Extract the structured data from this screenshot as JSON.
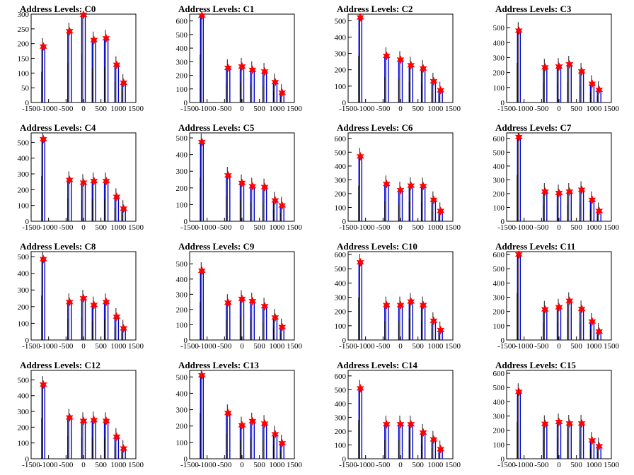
{
  "chart_data": [
    {
      "type": "histogram",
      "title": "Address Levels: C0",
      "xlim": [
        -1500,
        1500
      ],
      "ylim": [
        0,
        300
      ],
      "yticks": [
        0,
        50,
        100,
        150,
        200,
        250,
        300
      ],
      "xticks": [
        -1500,
        -1000,
        -500,
        0,
        500,
        1000,
        1500
      ],
      "xtick_labels": [
        "-1500",
        "-1000",
        "-500",
        "0",
        "500",
        "1000",
        "1500"
      ],
      "peaks": [
        {
          "x": -1150,
          "y": 190
        },
        {
          "x": -400,
          "y": 242
        },
        {
          "x": 0,
          "y": 298
        },
        {
          "x": 300,
          "y": 212
        },
        {
          "x": 650,
          "y": 218
        },
        {
          "x": 950,
          "y": 128
        },
        {
          "x": 1150,
          "y": 67
        }
      ]
    },
    {
      "type": "histogram",
      "title": "Address Levels: C1",
      "xlim": [
        -1500,
        1500
      ],
      "ylim": [
        0,
        650
      ],
      "yticks": [
        0,
        100,
        200,
        300,
        400,
        500,
        600
      ],
      "xticks": [
        -1500,
        -1000,
        -500,
        0,
        500,
        1000,
        1500
      ],
      "xtick_labels": [
        "-1500",
        "-1000",
        "-500",
        "0",
        "500",
        "1000",
        "1500"
      ],
      "peaks": [
        {
          "x": -1150,
          "y": 640
        },
        {
          "x": -400,
          "y": 255
        },
        {
          "x": 0,
          "y": 265
        },
        {
          "x": 300,
          "y": 240
        },
        {
          "x": 650,
          "y": 228
        },
        {
          "x": 950,
          "y": 150
        },
        {
          "x": 1150,
          "y": 72
        }
      ]
    },
    {
      "type": "histogram",
      "title": "Address Levels: C2",
      "xlim": [
        -1500,
        1500
      ],
      "ylim": [
        0,
        540
      ],
      "yticks": [
        0,
        100,
        200,
        300,
        400,
        500
      ],
      "xticks": [
        -1500,
        -1000,
        -500,
        0,
        500,
        1000,
        1500
      ],
      "xtick_labels": [
        "-1500",
        "-1000",
        "-500",
        "0",
        "500",
        "1000",
        "1500"
      ],
      "peaks": [
        {
          "x": -1150,
          "y": 520
        },
        {
          "x": -400,
          "y": 285
        },
        {
          "x": 0,
          "y": 262
        },
        {
          "x": 300,
          "y": 228
        },
        {
          "x": 650,
          "y": 208
        },
        {
          "x": 950,
          "y": 130
        },
        {
          "x": 1150,
          "y": 75
        }
      ]
    },
    {
      "type": "histogram",
      "title": "Address Levels: C3",
      "xlim": [
        -1500,
        1500
      ],
      "ylim": [
        0,
        590
      ],
      "yticks": [
        0,
        100,
        200,
        300,
        400,
        500
      ],
      "xticks": [
        -1500,
        -1000,
        -500,
        0,
        500,
        1000,
        1500
      ],
      "xtick_labels": [
        "-1500",
        "-1000",
        "-500",
        "0",
        "500",
        "1000",
        "1500"
      ],
      "peaks": [
        {
          "x": -1150,
          "y": 480
        },
        {
          "x": -400,
          "y": 235
        },
        {
          "x": 0,
          "y": 240
        },
        {
          "x": 300,
          "y": 255
        },
        {
          "x": 650,
          "y": 208
        },
        {
          "x": 950,
          "y": 125
        },
        {
          "x": 1150,
          "y": 85
        }
      ]
    },
    {
      "type": "histogram",
      "title": "Address Levels: C4",
      "xlim": [
        -1500,
        1500
      ],
      "ylim": [
        0,
        560
      ],
      "yticks": [
        0,
        100,
        200,
        300,
        400,
        500
      ],
      "xticks": [
        -1500,
        -1000,
        -500,
        0,
        500,
        1000,
        1500
      ],
      "xtick_labels": [
        "-1500",
        "-1000",
        "-500",
        "0",
        "500",
        "1000",
        "1500"
      ],
      "peaks": [
        {
          "x": -1150,
          "y": 520
        },
        {
          "x": -400,
          "y": 262
        },
        {
          "x": 0,
          "y": 245
        },
        {
          "x": 300,
          "y": 255
        },
        {
          "x": 650,
          "y": 255
        },
        {
          "x": 950,
          "y": 155
        },
        {
          "x": 1150,
          "y": 80
        }
      ]
    },
    {
      "type": "histogram",
      "title": "Address Levels: C5",
      "xlim": [
        -1500,
        1500
      ],
      "ylim": [
        0,
        530
      ],
      "yticks": [
        0,
        100,
        200,
        300,
        400,
        500
      ],
      "xticks": [
        -1500,
        -1000,
        -500,
        0,
        500,
        1000,
        1500
      ],
      "xtick_labels": [
        "-1500",
        "-1000",
        "-500",
        "0",
        "500",
        "1000",
        "1500"
      ],
      "peaks": [
        {
          "x": -1150,
          "y": 475
        },
        {
          "x": -400,
          "y": 275
        },
        {
          "x": 0,
          "y": 230
        },
        {
          "x": 300,
          "y": 210
        },
        {
          "x": 650,
          "y": 205
        },
        {
          "x": 950,
          "y": 125
        },
        {
          "x": 1150,
          "y": 95
        }
      ]
    },
    {
      "type": "histogram",
      "title": "Address Levels: C6",
      "xlim": [
        -1500,
        1500
      ],
      "ylim": [
        0,
        640
      ],
      "yticks": [
        0,
        100,
        200,
        300,
        400,
        500,
        600
      ],
      "xticks": [
        -1500,
        -1000,
        -500,
        0,
        500,
        1000,
        1500
      ],
      "xtick_labels": [
        "-1500",
        "-1000",
        "-500",
        "0",
        "500",
        "1000",
        "1500"
      ],
      "peaks": [
        {
          "x": -1150,
          "y": 470
        },
        {
          "x": -400,
          "y": 270
        },
        {
          "x": 0,
          "y": 225
        },
        {
          "x": 300,
          "y": 258
        },
        {
          "x": 650,
          "y": 255
        },
        {
          "x": 950,
          "y": 155
        },
        {
          "x": 1150,
          "y": 75
        }
      ]
    },
    {
      "type": "histogram",
      "title": "Address Levels: C7",
      "xlim": [
        -1500,
        1500
      ],
      "ylim": [
        0,
        640
      ],
      "yticks": [
        0,
        100,
        200,
        300,
        400,
        500,
        600
      ],
      "xticks": [
        -1500,
        -1000,
        -500,
        0,
        500,
        1000,
        1500
      ],
      "xtick_labels": [
        "-1500",
        "-1000",
        "-500",
        "0",
        "500",
        "1000",
        "1500"
      ],
      "peaks": [
        {
          "x": -1150,
          "y": 610
        },
        {
          "x": -400,
          "y": 215
        },
        {
          "x": 0,
          "y": 205
        },
        {
          "x": 300,
          "y": 215
        },
        {
          "x": 650,
          "y": 228
        },
        {
          "x": 950,
          "y": 155
        },
        {
          "x": 1150,
          "y": 75
        }
      ]
    },
    {
      "type": "histogram",
      "title": "Address Levels: C8",
      "xlim": [
        -1500,
        1500
      ],
      "ylim": [
        0,
        530
      ],
      "yticks": [
        0,
        100,
        200,
        300,
        400,
        500
      ],
      "xticks": [
        -1500,
        -1000,
        -500,
        0,
        500,
        1000,
        1500
      ],
      "xtick_labels": [
        "-1500",
        "-1000",
        "-500",
        "0",
        "500",
        "1000",
        "1500"
      ],
      "peaks": [
        {
          "x": -1150,
          "y": 485
        },
        {
          "x": -400,
          "y": 228
        },
        {
          "x": 0,
          "y": 250
        },
        {
          "x": 300,
          "y": 210
        },
        {
          "x": 650,
          "y": 228
        },
        {
          "x": 950,
          "y": 140
        },
        {
          "x": 1150,
          "y": 70
        }
      ]
    },
    {
      "type": "histogram",
      "title": "Address Levels: C9",
      "xlim": [
        -1500,
        1500
      ],
      "ylim": [
        0,
        580
      ],
      "yticks": [
        0,
        100,
        200,
        300,
        400,
        500
      ],
      "xticks": [
        -1500,
        -1000,
        -500,
        0,
        500,
        1000,
        1500
      ],
      "xtick_labels": [
        "-1500",
        "-1000",
        "-500",
        "0",
        "500",
        "1000",
        "1500"
      ],
      "peaks": [
        {
          "x": -1150,
          "y": 455
        },
        {
          "x": -400,
          "y": 245
        },
        {
          "x": 0,
          "y": 270
        },
        {
          "x": 300,
          "y": 255
        },
        {
          "x": 650,
          "y": 222
        },
        {
          "x": 950,
          "y": 148
        },
        {
          "x": 1150,
          "y": 85
        }
      ]
    },
    {
      "type": "histogram",
      "title": "Address Levels: C10",
      "xlim": [
        -1500,
        1500
      ],
      "ylim": [
        0,
        620
      ],
      "yticks": [
        0,
        100,
        200,
        300,
        400,
        500,
        600
      ],
      "xticks": [
        -1500,
        -1000,
        -500,
        0,
        500,
        1000,
        1500
      ],
      "xtick_labels": [
        "-1500",
        "-1000",
        "-500",
        "0",
        "500",
        "1000",
        "1500"
      ],
      "peaks": [
        {
          "x": -1150,
          "y": 545
        },
        {
          "x": -400,
          "y": 245
        },
        {
          "x": 0,
          "y": 245
        },
        {
          "x": 300,
          "y": 270
        },
        {
          "x": 650,
          "y": 245
        },
        {
          "x": 950,
          "y": 135
        },
        {
          "x": 1150,
          "y": 70
        }
      ]
    },
    {
      "type": "histogram",
      "title": "Address Levels: C11",
      "xlim": [
        -1500,
        1500
      ],
      "ylim": [
        0,
        620
      ],
      "yticks": [
        0,
        100,
        200,
        300,
        400,
        500,
        600
      ],
      "xticks": [
        -1500,
        -1000,
        -500,
        0,
        500,
        1000,
        1500
      ],
      "xtick_labels": [
        "-1500",
        "-1000",
        "-500",
        "0",
        "500",
        "1000",
        "1500"
      ],
      "peaks": [
        {
          "x": -1150,
          "y": 600
        },
        {
          "x": -400,
          "y": 215
        },
        {
          "x": 0,
          "y": 230
        },
        {
          "x": 300,
          "y": 275
        },
        {
          "x": 650,
          "y": 218
        },
        {
          "x": 950,
          "y": 130
        },
        {
          "x": 1150,
          "y": 60
        }
      ]
    },
    {
      "type": "histogram",
      "title": "Address Levels: C12",
      "xlim": [
        -1500,
        1500
      ],
      "ylim": [
        0,
        560
      ],
      "yticks": [
        0,
        100,
        200,
        300,
        400,
        500
      ],
      "xticks": [
        -1500,
        -1000,
        -500,
        0,
        500,
        1000,
        1500
      ],
      "xtick_labels": [
        "-1500",
        "-1000",
        "-500",
        "0",
        "500",
        "1000",
        "1500"
      ],
      "peaks": [
        {
          "x": -1150,
          "y": 470
        },
        {
          "x": -400,
          "y": 262
        },
        {
          "x": 0,
          "y": 240
        },
        {
          "x": 300,
          "y": 245
        },
        {
          "x": 650,
          "y": 240
        },
        {
          "x": 950,
          "y": 140
        },
        {
          "x": 1150,
          "y": 65
        }
      ]
    },
    {
      "type": "histogram",
      "title": "Address Levels: C13",
      "xlim": [
        -1500,
        1500
      ],
      "ylim": [
        0,
        540
      ],
      "yticks": [
        0,
        100,
        200,
        300,
        400,
        500
      ],
      "xticks": [
        -1500,
        -1000,
        -500,
        0,
        500,
        1000,
        1500
      ],
      "xtick_labels": [
        "-1500",
        "-1000",
        "-500",
        "0",
        "500",
        "1000",
        "1500"
      ],
      "peaks": [
        {
          "x": -1150,
          "y": 510
        },
        {
          "x": -400,
          "y": 280
        },
        {
          "x": 0,
          "y": 205
        },
        {
          "x": 300,
          "y": 230
        },
        {
          "x": 650,
          "y": 215
        },
        {
          "x": 950,
          "y": 150
        },
        {
          "x": 1150,
          "y": 95
        }
      ]
    },
    {
      "type": "histogram",
      "title": "Address Levels: C14",
      "xlim": [
        -1500,
        1500
      ],
      "ylim": [
        0,
        640
      ],
      "yticks": [
        0,
        100,
        200,
        300,
        400,
        500,
        600
      ],
      "xticks": [
        -1500,
        -1000,
        -500,
        0,
        500,
        1000,
        1500
      ],
      "xtick_labels": [
        "-1500",
        "-1000",
        "-500",
        "0",
        "500",
        "1000",
        "1500"
      ],
      "peaks": [
        {
          "x": -1150,
          "y": 510
        },
        {
          "x": -400,
          "y": 250
        },
        {
          "x": 0,
          "y": 250
        },
        {
          "x": 300,
          "y": 250
        },
        {
          "x": 650,
          "y": 190
        },
        {
          "x": 950,
          "y": 140
        },
        {
          "x": 1150,
          "y": 70
        }
      ]
    },
    {
      "type": "histogram",
      "title": "Address Levels: C15",
      "xlim": [
        -1500,
        1500
      ],
      "ylim": [
        0,
        620
      ],
      "yticks": [
        0,
        100,
        200,
        300,
        400,
        500,
        600
      ],
      "xticks": [
        -1500,
        -1000,
        -500,
        0,
        500,
        1000,
        1500
      ],
      "xtick_labels": [
        "-1500",
        "-1000",
        "-500",
        "0",
        "500",
        "1000",
        "1500"
      ],
      "peaks": [
        {
          "x": -1150,
          "y": 470
        },
        {
          "x": -400,
          "y": 245
        },
        {
          "x": 0,
          "y": 258
        },
        {
          "x": 300,
          "y": 248
        },
        {
          "x": 650,
          "y": 248
        },
        {
          "x": 950,
          "y": 128
        },
        {
          "x": 1150,
          "y": 88
        }
      ]
    }
  ],
  "colors": {
    "histogram_line": "#0000dd",
    "black_spike": "#000000",
    "marker": "#ff0000",
    "axis": "#000000"
  },
  "marker_shape": "star"
}
